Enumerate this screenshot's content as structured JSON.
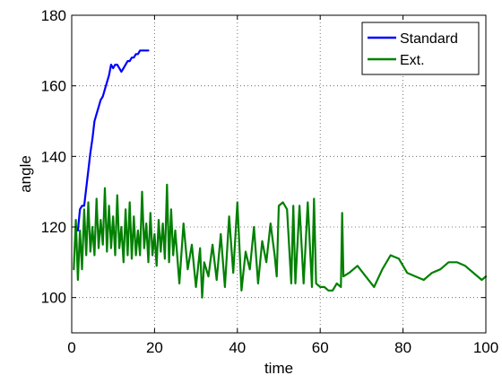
{
  "chart_data": {
    "type": "line",
    "title": "",
    "xlabel": "time",
    "ylabel": "angle",
    "xlim": [
      0,
      100
    ],
    "ylim": [
      90,
      180
    ],
    "xticks": [
      0,
      20,
      40,
      60,
      80,
      100
    ],
    "yticks": [
      100,
      120,
      140,
      160,
      180
    ],
    "grid": true,
    "legend_position": "top-right",
    "series": [
      {
        "name": "Standard",
        "color": "#0000ff",
        "x": [
          1.5,
          2.0,
          2.5,
          3.0,
          3.5,
          4.0,
          4.5,
          5.0,
          5.5,
          6.0,
          6.5,
          7.0,
          7.5,
          8.0,
          8.5,
          9.0,
          9.5,
          10.0,
          10.5,
          11.0,
          11.5,
          12.0,
          12.5,
          13.0,
          13.5,
          14.0,
          14.5,
          15.0,
          15.5,
          16.0,
          16.5,
          17.0,
          17.5,
          18.0,
          18.5
        ],
        "y": [
          119,
          125,
          126,
          126,
          131,
          136,
          141,
          145,
          150,
          152,
          154,
          156,
          157,
          159,
          161,
          163,
          166,
          165,
          166,
          166,
          165,
          164,
          165,
          166,
          167,
          167,
          168,
          168,
          169,
          169,
          170,
          170,
          170,
          170,
          170
        ]
      },
      {
        "name": "Ext.",
        "color": "#008000",
        "x": [
          0.5,
          1.0,
          1.5,
          2.0,
          2.5,
          3.0,
          3.5,
          4.0,
          4.5,
          5.0,
          5.5,
          6.0,
          6.5,
          7.0,
          7.5,
          8.0,
          8.5,
          9.0,
          9.5,
          10.0,
          10.5,
          11.0,
          11.5,
          12.0,
          12.5,
          13.0,
          13.5,
          14.0,
          14.5,
          15.0,
          15.5,
          16.0,
          16.5,
          17.0,
          17.5,
          18.0,
          18.5,
          19.0,
          19.5,
          20.0,
          20.5,
          21.0,
          21.5,
          22.0,
          22.5,
          23.0,
          23.5,
          24.0,
          24.5,
          25.0,
          26.0,
          27.0,
          28.0,
          29.0,
          30.0,
          31.0,
          31.5,
          32.0,
          33.0,
          34.0,
          35.0,
          36.0,
          37.0,
          38.0,
          39.0,
          40.0,
          41.0,
          42.0,
          43.0,
          44.0,
          45.0,
          46.0,
          47.0,
          48.0,
          49.0,
          49.5,
          50.0,
          51.0,
          52.0,
          53.0,
          53.5,
          54.0,
          55.0,
          56.0,
          57.0,
          58.0,
          58.5,
          59.0,
          60.0,
          61.0,
          62.0,
          63.0,
          64.0,
          65.0,
          65.3,
          65.6,
          67.0,
          69.0,
          71.0,
          73.0,
          75.0,
          77.0,
          79.0,
          81.0,
          83.0,
          85.0,
          87.0,
          89.0,
          91.0,
          93.0,
          95.0,
          97.0,
          99.0,
          100.0
        ],
        "y": [
          108,
          122,
          105,
          119,
          108,
          125,
          112,
          127,
          113,
          120,
          112,
          128,
          114,
          122,
          115,
          131,
          113,
          126,
          114,
          123,
          112,
          129,
          114,
          120,
          110,
          125,
          112,
          127,
          111,
          123,
          112,
          119,
          112,
          130,
          114,
          121,
          110,
          124,
          112,
          118,
          109,
          122,
          113,
          121,
          111,
          132,
          110,
          125,
          112,
          119,
          104,
          121,
          108,
          115,
          103,
          114,
          100,
          110,
          106,
          115,
          105,
          118,
          103,
          123,
          107,
          127,
          102,
          113,
          108,
          120,
          104,
          116,
          110,
          121,
          112,
          106,
          126,
          127,
          125,
          104,
          126,
          104,
          126,
          104,
          127,
          103,
          128,
          104,
          103,
          103,
          102,
          102,
          104,
          103,
          124,
          106,
          107,
          109,
          106,
          103,
          108,
          112,
          111,
          107,
          106,
          105,
          107,
          108,
          110,
          110,
          109,
          107,
          105,
          106
        ]
      }
    ]
  }
}
